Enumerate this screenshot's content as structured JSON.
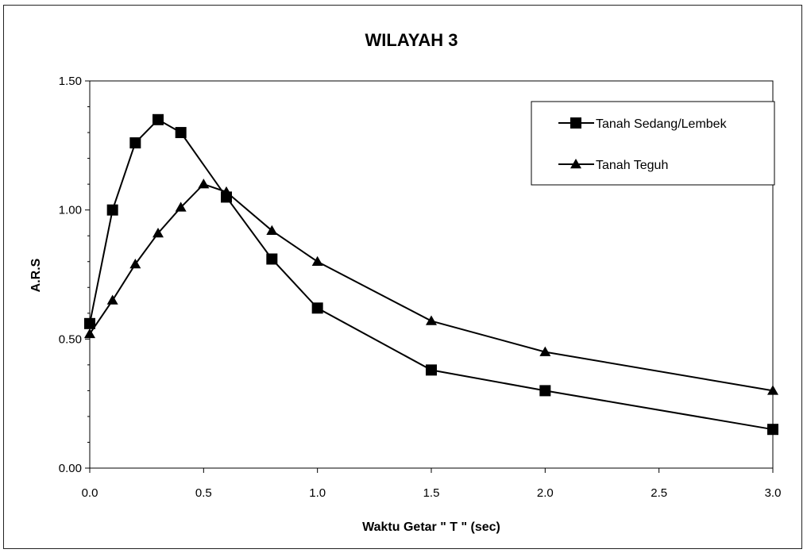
{
  "chart_data": {
    "type": "line",
    "title": "WILAYAH 3",
    "xlabel": "Waktu Getar \" T \" (sec)",
    "ylabel": "A.R.S",
    "xlim": [
      0,
      3
    ],
    "ylim": [
      0,
      1.5
    ],
    "xticks": [
      "0.0",
      "0.5",
      "1.0",
      "1.5",
      "2.0",
      "2.5",
      "3.0"
    ],
    "yticks": [
      "0.00",
      "0.50",
      "1.00",
      "1.50"
    ],
    "grid": false,
    "legend_position": "top-right",
    "series": [
      {
        "name": "Tanah Sedang/Lembek",
        "marker": "square",
        "color": "#000000",
        "points": [
          [
            0.0,
            0.56
          ],
          [
            0.1,
            1.0
          ],
          [
            0.2,
            1.26
          ],
          [
            0.3,
            1.35
          ],
          [
            0.4,
            1.3
          ],
          [
            0.6,
            1.05
          ],
          [
            0.8,
            0.81
          ],
          [
            1.0,
            0.62
          ],
          [
            1.5,
            0.38
          ],
          [
            2.0,
            0.3
          ],
          [
            3.0,
            0.15
          ]
        ]
      },
      {
        "name": "Tanah Teguh",
        "marker": "triangle",
        "color": "#000000",
        "points": [
          [
            0.0,
            0.52
          ],
          [
            0.1,
            0.65
          ],
          [
            0.2,
            0.79
          ],
          [
            0.3,
            0.91
          ],
          [
            0.4,
            1.01
          ],
          [
            0.5,
            1.1
          ],
          [
            0.6,
            1.07
          ],
          [
            0.8,
            0.92
          ],
          [
            1.0,
            0.8
          ],
          [
            1.5,
            0.57
          ],
          [
            2.0,
            0.45
          ],
          [
            3.0,
            0.3
          ]
        ]
      }
    ]
  }
}
